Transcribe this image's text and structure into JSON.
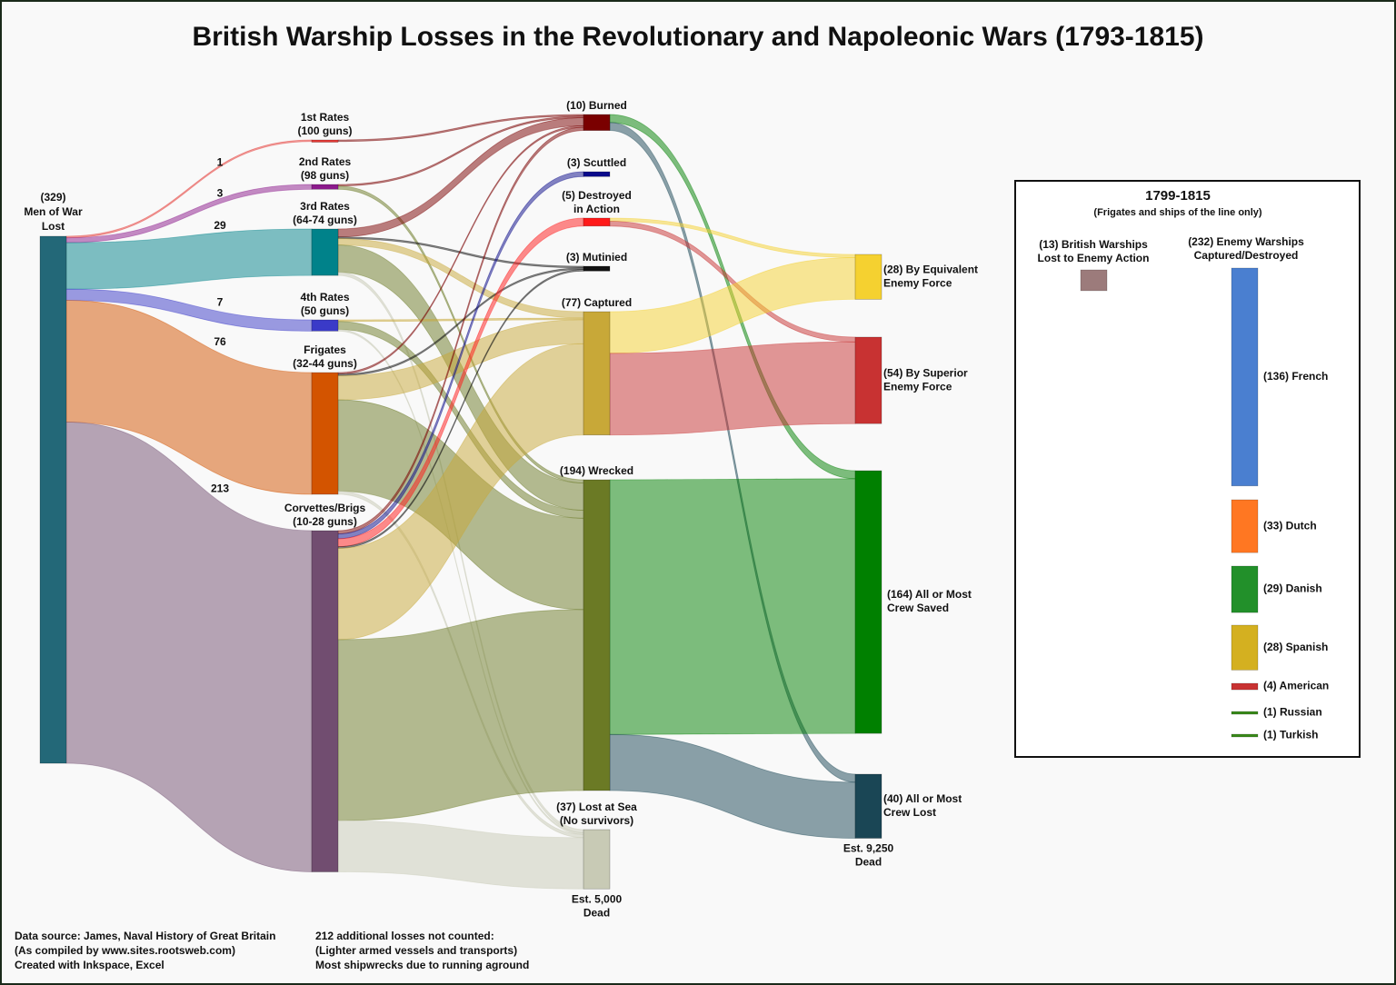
{
  "chart_data": {
    "type": "sankey",
    "title": "British Warship Losses in the Revolutionary and Napoleonic Wars (1793-1815)",
    "nodes": [
      {
        "label": [
          "(329)",
          "Men of War",
          "Lost"
        ],
        "value": 329,
        "color": "#236878"
      },
      {
        "label": [
          "1st Rates",
          "(100 guns)"
        ],
        "color": "#e53935"
      },
      {
        "label": [
          "2nd Rates",
          "(98 guns)"
        ],
        "color": "#8b1a8b"
      },
      {
        "label": [
          "3rd Rates",
          "(64-74 guns)"
        ],
        "color": "#00828a"
      },
      {
        "label": [
          "4th Rates",
          "(50 guns)"
        ],
        "color": "#3a3ac8"
      },
      {
        "label": [
          "Frigates",
          "(32-44 guns)"
        ],
        "color": "#d35400"
      },
      {
        "label": [
          "Corvettes/Brigs",
          "(10-28 guns)"
        ],
        "color": "#714d70"
      },
      {
        "label": [
          "(10) Burned"
        ],
        "value": 10,
        "color": "#7a0000"
      },
      {
        "label": [
          "(3) Scuttled"
        ],
        "value": 3,
        "color": "#0a0a8a"
      },
      {
        "label": [
          "(5) Destroyed",
          "in Action"
        ],
        "value": 5,
        "color": "#ff1a1a"
      },
      {
        "label": [
          "(3) Mutinied"
        ],
        "value": 3,
        "color": "#111111"
      },
      {
        "label": [
          "(77) Captured"
        ],
        "value": 77,
        "color": "#c8a838"
      },
      {
        "label": [
          "(194) Wrecked"
        ],
        "value": 194,
        "color": "#6b7a25"
      },
      {
        "label": [
          "(37) Lost at Sea",
          "(No survivors)"
        ],
        "value": 37,
        "color": "#c8cab5",
        "note": [
          "Est. 5,000",
          "Dead"
        ]
      },
      {
        "label": [
          "(28) By Equivalent",
          "Enemy Force"
        ],
        "value": 28,
        "color": "#f5d130"
      },
      {
        "label": [
          "(54) By Superior",
          "Enemy Force"
        ],
        "value": 54,
        "color": "#c83232"
      },
      {
        "label": [
          "(164) All or Most",
          "Crew Saved"
        ],
        "value": 164,
        "color": "#008000"
      },
      {
        "label": [
          "(40) All or Most",
          "Crew Lost"
        ],
        "value": 40,
        "color": "#1a4655",
        "note": [
          "Est. 9,250",
          "Dead"
        ]
      }
    ],
    "links": [
      {
        "source": 0,
        "target": 1,
        "value": 1,
        "labeled": true
      },
      {
        "source": 0,
        "target": 2,
        "value": 3,
        "labeled": true
      },
      {
        "source": 0,
        "target": 3,
        "value": 29,
        "labeled": true
      },
      {
        "source": 0,
        "target": 4,
        "value": 7,
        "labeled": true
      },
      {
        "source": 0,
        "target": 5,
        "value": 76,
        "labeled": true
      },
      {
        "source": 0,
        "target": 6,
        "value": 213,
        "labeled": true
      },
      {
        "source": 1,
        "target": 7,
        "value": 1
      },
      {
        "source": 2,
        "target": 7,
        "value": 1
      },
      {
        "source": 2,
        "target": 12,
        "value": 2
      },
      {
        "source": 3,
        "target": 7,
        "value": 5
      },
      {
        "source": 3,
        "target": 10,
        "value": 1
      },
      {
        "source": 3,
        "target": 11,
        "value": 4
      },
      {
        "source": 3,
        "target": 12,
        "value": 17
      },
      {
        "source": 3,
        "target": 13,
        "value": 2
      },
      {
        "source": 4,
        "target": 11,
        "value": 1
      },
      {
        "source": 4,
        "target": 12,
        "value": 5
      },
      {
        "source": 4,
        "target": 13,
        "value": 1
      },
      {
        "source": 5,
        "target": 7,
        "value": 1
      },
      {
        "source": 5,
        "target": 10,
        "value": 1
      },
      {
        "source": 5,
        "target": 11,
        "value": 15
      },
      {
        "source": 5,
        "target": 12,
        "value": 57
      },
      {
        "source": 5,
        "target": 13,
        "value": 2
      },
      {
        "source": 6,
        "target": 7,
        "value": 2
      },
      {
        "source": 6,
        "target": 8,
        "value": 3
      },
      {
        "source": 6,
        "target": 9,
        "value": 5
      },
      {
        "source": 6,
        "target": 10,
        "value": 1
      },
      {
        "source": 6,
        "target": 11,
        "value": 57
      },
      {
        "source": 6,
        "target": 12,
        "value": 113
      },
      {
        "source": 6,
        "target": 13,
        "value": 32
      },
      {
        "source": 7,
        "target": 16,
        "value": 5
      },
      {
        "source": 7,
        "target": 17,
        "value": 5
      },
      {
        "source": 9,
        "target": 14,
        "value": 2
      },
      {
        "source": 9,
        "target": 15,
        "value": 3
      },
      {
        "source": 11,
        "target": 14,
        "value": 26
      },
      {
        "source": 11,
        "target": 15,
        "value": 51
      },
      {
        "source": 12,
        "target": 16,
        "value": 159
      },
      {
        "source": 12,
        "target": 17,
        "value": 35
      }
    ],
    "inset": {
      "title": "1799-1815",
      "subtitle": "(Frigates and ships of the line only)",
      "british": {
        "label": [
          "(13) British Warships",
          "Lost to Enemy Action"
        ],
        "value": 13,
        "color": "#9c7b7b"
      },
      "enemy": {
        "label": [
          "(232) Enemy Warships",
          "Captured/Destroyed"
        ],
        "value": 232,
        "series": [
          {
            "name": "(136) French",
            "value": 136,
            "color": "#4a7fd0"
          },
          {
            "name": "(33) Dutch",
            "value": 33,
            "color": "#ff7722"
          },
          {
            "name": "(29) Danish",
            "value": 29,
            "color": "#22902a"
          },
          {
            "name": "(28) Spanish",
            "value": 28,
            "color": "#d4b020"
          },
          {
            "name": "(4) American",
            "value": 4,
            "color": "#c83232"
          },
          {
            "name": "(1) Russian",
            "value": 1,
            "color": "#3a8a1a"
          },
          {
            "name": "(1) Turkish",
            "value": 1,
            "color": "#3a8a1a"
          }
        ]
      }
    },
    "notes": [
      [
        "Data source: James, Naval History of Great Britain",
        "(As compiled by www.sites.rootsweb.com)",
        "Created with Inkspace, Excel"
      ],
      [
        "212 additional losses not counted:",
        "(Lighter armed vessels and transports)",
        "Most shipwrecks due to running aground"
      ]
    ]
  }
}
